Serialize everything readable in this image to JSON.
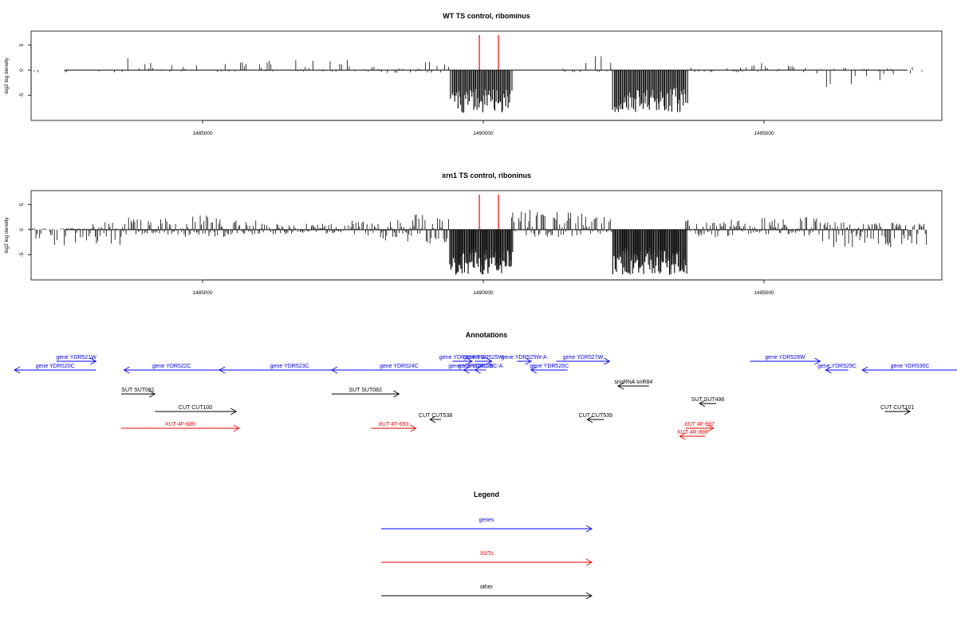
{
  "chart_data": [
    {
      "type": "bar",
      "title": "WT TS control, ribominus",
      "ylabel": "log2 log density",
      "xlabel": "",
      "xlim": [
        1481750,
        1498250
      ],
      "ylim": [
        -9,
        7
      ],
      "xticks": [
        1485000,
        1490000,
        1495000
      ],
      "yticks": [
        -5,
        0,
        5
      ],
      "grid": false,
      "marker_lines": {
        "color": "#ff0000",
        "x": [
          1489930,
          1490270
        ],
        "height": 7
      },
      "envelope": [
        [
          1481900,
          -0.5,
          0
        ],
        [
          1483600,
          0,
          2.5
        ],
        [
          1484000,
          -0.5,
          2
        ],
        [
          1485400,
          -0.3,
          2
        ],
        [
          1487700,
          -0.6,
          0.8
        ],
        [
          1488600,
          -0.8,
          2.0
        ],
        [
          1489400,
          -8.5,
          0
        ],
        [
          1490500,
          0,
          1.5
        ],
        [
          1491200,
          -0.5,
          3.5
        ],
        [
          1491900,
          -0.5,
          2.8
        ],
        [
          1492300,
          -8.5,
          0
        ],
        [
          1493600,
          -0.4,
          0.6
        ],
        [
          1494700,
          -0.3,
          1.5
        ],
        [
          1495700,
          -0.8,
          2.0
        ],
        [
          1496000,
          -3.5,
          0.5
        ],
        [
          1497500,
          -1.0,
          0.6
        ]
      ]
    },
    {
      "type": "bar",
      "title": "xrn1 TS control, riboninus",
      "ylabel": "log2 log density",
      "xlabel": "",
      "xlim": [
        1481750,
        1498250
      ],
      "ylim": [
        -9,
        7
      ],
      "xticks": [
        1485000,
        1490000,
        1495000
      ],
      "yticks": [
        -5,
        0,
        5
      ],
      "grid": false,
      "marker_lines": {
        "color": "#ff0000",
        "x": [
          1489930,
          1490270
        ],
        "height": 7
      },
      "envelope": [
        [
          1481900,
          -3.2,
          0.3
        ],
        [
          1483000,
          -3.5,
          1.5
        ],
        [
          1483600,
          -1.0,
          2.5
        ],
        [
          1484500,
          -1.5,
          2.8
        ],
        [
          1485500,
          -1.0,
          2.0
        ],
        [
          1486500,
          -0.8,
          1.2
        ],
        [
          1487600,
          -2.5,
          2.0
        ],
        [
          1488600,
          -3.0,
          3.0
        ],
        [
          1489400,
          -9.0,
          0
        ],
        [
          1490500,
          -1.5,
          4.0
        ],
        [
          1491200,
          -1.5,
          3.5
        ],
        [
          1491900,
          -1.0,
          2.5
        ],
        [
          1492300,
          -9.0,
          0
        ],
        [
          1493600,
          -1.5,
          2.0
        ],
        [
          1494700,
          -1.0,
          2.5
        ],
        [
          1495700,
          -1.5,
          3.0
        ],
        [
          1496000,
          -4.0,
          1.5
        ],
        [
          1497500,
          -3.5,
          1.5
        ]
      ]
    }
  ],
  "annotations": {
    "title": "Annotations",
    "items": [
      {
        "label": "gene YDR520C",
        "start": 1481650,
        "end": 1483100,
        "strand": "-",
        "row": 2,
        "color": "#0000ff"
      },
      {
        "label": "gene YDR521W",
        "start": 1482400,
        "end": 1483100,
        "strand": "+",
        "row": 1,
        "color": "#0000ff"
      },
      {
        "label": "gene YDR522C",
        "start": 1483600,
        "end": 1485300,
        "strand": "-",
        "row": 2,
        "color": "#0000ff"
      },
      {
        "label": "gene YDR523C",
        "start": 1485300,
        "end": 1487800,
        "strand": "-",
        "row": 2,
        "color": "#0000ff"
      },
      {
        "label": "gene YDR524C",
        "start": 1487300,
        "end": 1489700,
        "strand": "-",
        "row": 2,
        "color": "#0000ff"
      },
      {
        "label": "gene YDR524W-A",
        "start": 1489450,
        "end": 1489800,
        "strand": "+",
        "row": 1,
        "color": "#0000ff"
      },
      {
        "label": "gene YDR524C-B",
        "start": 1489650,
        "end": 1489900,
        "strand": "-",
        "row": 2,
        "color": "#0000ff"
      },
      {
        "label": "gene YDR525W",
        "start": 1489850,
        "end": 1490150,
        "strand": "+",
        "row": 1,
        "color": "#0000ff"
      },
      {
        "label": "gene YDR525C-A",
        "start": 1489850,
        "end": 1490050,
        "strand": "-",
        "row": 2,
        "color": "#0000ff"
      },
      {
        "label": "gene YDR525W-A",
        "start": 1490600,
        "end": 1490850,
        "strand": "+",
        "row": 1,
        "color": "#0000ff"
      },
      {
        "label": "gene YDR526C",
        "start": 1490850,
        "end": 1491500,
        "strand": "-",
        "row": 2,
        "color": "#0000ff"
      },
      {
        "label": "gene YDR527W",
        "start": 1491300,
        "end": 1492250,
        "strand": "+",
        "row": 1,
        "color": "#0000ff"
      },
      {
        "label": "gene YDR528W",
        "start": 1494750,
        "end": 1496000,
        "strand": "+",
        "row": 1,
        "color": "#0000ff"
      },
      {
        "label": "gene YDR529C",
        "start": 1496100,
        "end": 1496500,
        "strand": "-",
        "row": 2,
        "color": "#0000ff"
      },
      {
        "label": "gene YDR530C",
        "start": 1496750,
        "end": 1498450,
        "strand": "-",
        "row": 2,
        "color": "#0000ff"
      },
      {
        "label": "snoRNA snR84",
        "start": 1492400,
        "end": 1492950,
        "strand": "-",
        "row": 3,
        "color": "#000000"
      },
      {
        "label": "SUT SUT081",
        "start": 1483550,
        "end": 1484150,
        "strand": "+",
        "row": 4,
        "color": "#000000"
      },
      {
        "label": "SUT SUT082",
        "start": 1487300,
        "end": 1488500,
        "strand": "+",
        "row": 4,
        "color": "#000000"
      },
      {
        "label": "SUT SUT496",
        "start": 1493850,
        "end": 1494150,
        "strand": "-",
        "row": 5,
        "color": "#000000"
      },
      {
        "label": "CUT CUT100",
        "start": 1484150,
        "end": 1485600,
        "strand": "+",
        "row": 6,
        "color": "#000000"
      },
      {
        "label": "CUT CUT101",
        "start": 1497150,
        "end": 1497600,
        "strand": "+",
        "row": 6,
        "color": "#000000"
      },
      {
        "label": "CUT CUT538",
        "start": 1489050,
        "end": 1489250,
        "strand": "-",
        "row": 7,
        "color": "#000000"
      },
      {
        "label": "CUT CUT539",
        "start": 1491850,
        "end": 1492150,
        "strand": "-",
        "row": 7,
        "color": "#000000"
      },
      {
        "label": "XUT 4F-689",
        "start": 1483550,
        "end": 1485650,
        "strand": "+",
        "row": 8,
        "color": "#ff0000"
      },
      {
        "label": "XUT 4F-693",
        "start": 1488000,
        "end": 1488800,
        "strand": "+",
        "row": 8,
        "color": "#ff0000"
      },
      {
        "label": "XUT 4F-697",
        "start": 1493600,
        "end": 1494100,
        "strand": "+",
        "row": 8,
        "color": "#ff0000"
      },
      {
        "label": "XUT 4R-808",
        "start": 1493500,
        "end": 1493950,
        "strand": "-",
        "row": 9,
        "color": "#ff0000"
      }
    ]
  },
  "legend": {
    "title": "Legend",
    "entries": [
      {
        "label": "genes",
        "color": "#0000ff"
      },
      {
        "label": "XUTs",
        "color": "#ff0000"
      },
      {
        "label": "other",
        "color": "#000000"
      }
    ]
  }
}
